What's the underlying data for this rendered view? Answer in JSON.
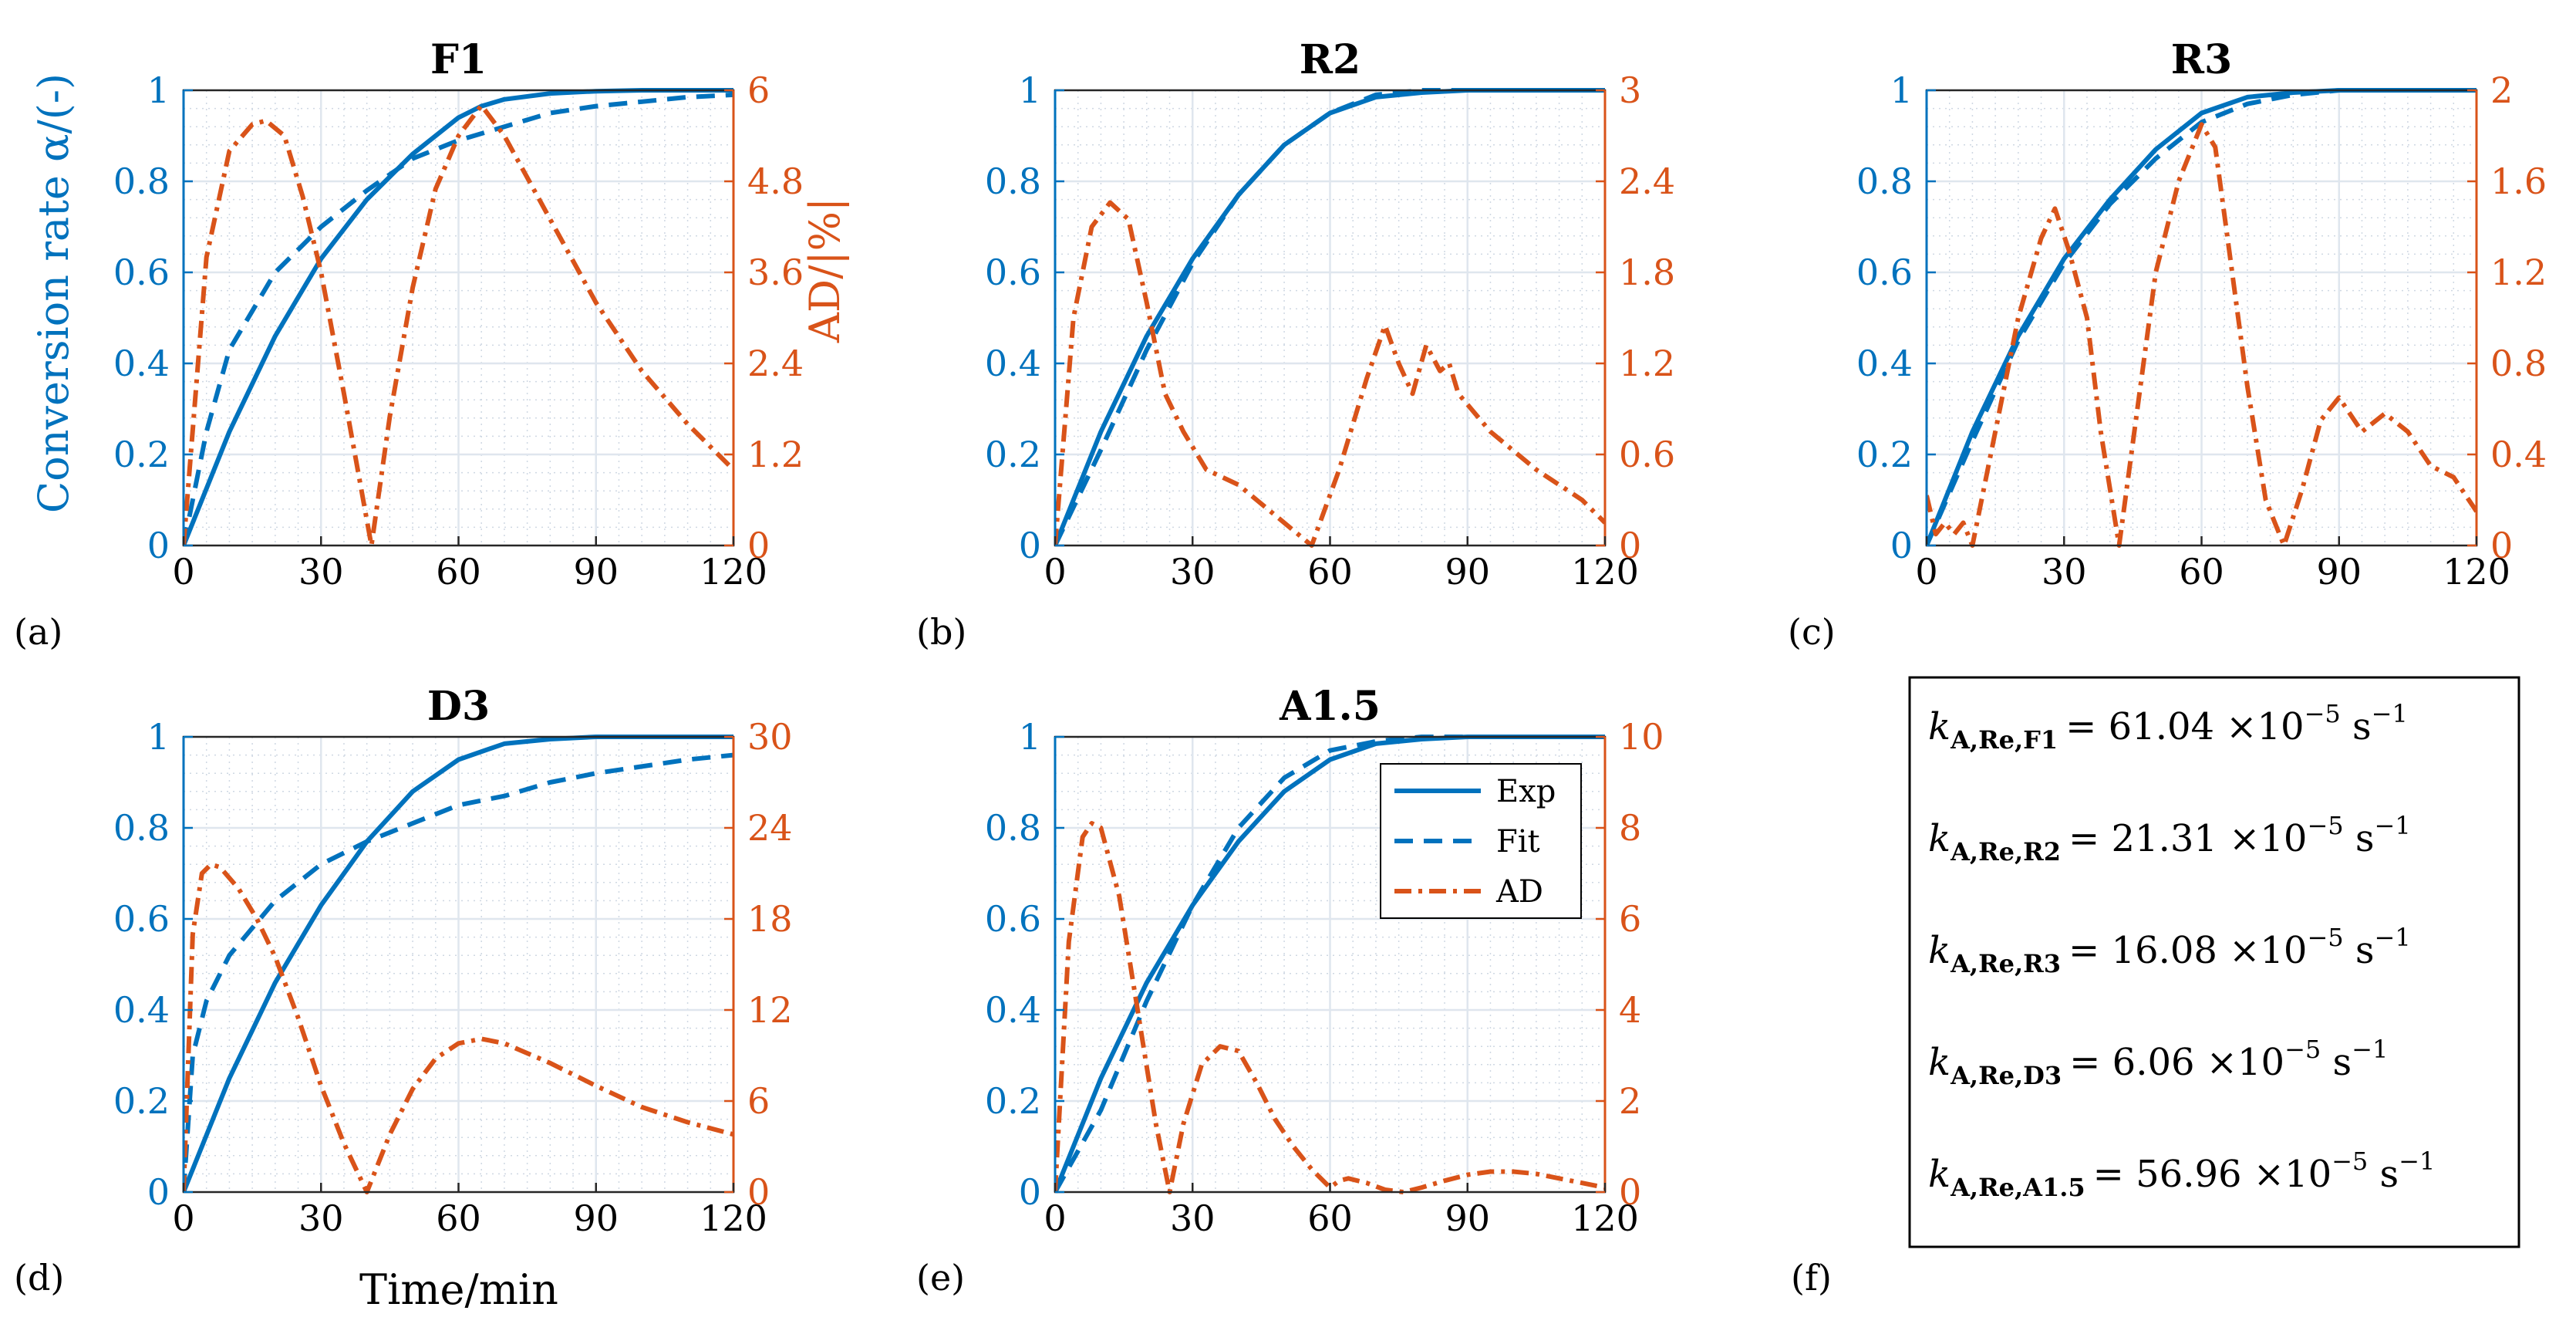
{
  "colors": {
    "left_axis": "#0072BD",
    "right_axis": "#D95319",
    "grid": "#dfe6ee",
    "minor_grid": "#cfd8e3"
  },
  "x_ticks": [
    0,
    30,
    60,
    90,
    120
  ],
  "x_label": "Time/min",
  "left_y_label": "Conversion rate α/(-)",
  "right_y_label": "AD/|%|",
  "legend": {
    "entries": [
      "Exp",
      "Fit",
      "AD"
    ]
  },
  "constants_panel_label": "(f)",
  "constants": [
    {
      "base": "k",
      "sub": "A,Re,F1",
      "value": "= 61.04 ×10",
      "exp": "−5",
      "unit": " s",
      "unit_exp": "−1"
    },
    {
      "base": "k",
      "sub": "A,Re,R2",
      "value": "= 21.31 ×10",
      "exp": "−5",
      "unit": " s",
      "unit_exp": "−1"
    },
    {
      "base": "k",
      "sub": "A,Re,R3",
      "value": "= 16.08 ×10",
      "exp": "−5",
      "unit": " s",
      "unit_exp": "−1"
    },
    {
      "base": "k",
      "sub": "A,Re,D3",
      "value": "= 6.06 ×10",
      "exp": "−5",
      "unit": " s",
      "unit_exp": "−1"
    },
    {
      "base": "k",
      "sub": "A,Re,A1.5",
      "value": "= 56.96 ×10",
      "exp": "−5",
      "unit": " s",
      "unit_exp": "−1"
    }
  ],
  "chart_data": [
    {
      "type": "line",
      "title": "F1",
      "panel_label": "(a)",
      "xlim": [
        0,
        120
      ],
      "ylim_left": [
        0,
        1
      ],
      "ylim_right": [
        0,
        6
      ],
      "yticks_left": [
        "0",
        "0.2",
        "0.4",
        "0.6",
        "0.8",
        "1"
      ],
      "yticks_right": [
        "0",
        "1.2",
        "2.4",
        "3.6",
        "4.8",
        "6"
      ],
      "xlabel": "",
      "ylabel_left": "Conversion rate α/(-)",
      "ylabel_right": "AD/|%|",
      "series": [
        {
          "name": "Exp",
          "axis": "left",
          "x": [
            0,
            10,
            20,
            30,
            40,
            50,
            60,
            65,
            70,
            80,
            90,
            100,
            110,
            120
          ],
          "y": [
            0,
            0.25,
            0.46,
            0.63,
            0.76,
            0.86,
            0.94,
            0.965,
            0.98,
            0.993,
            0.998,
            1,
            1,
            1
          ]
        },
        {
          "name": "Fit",
          "axis": "left",
          "x": [
            0,
            5,
            10,
            20,
            30,
            40,
            50,
            60,
            70,
            80,
            90,
            100,
            110,
            120
          ],
          "y": [
            0,
            0.25,
            0.43,
            0.6,
            0.7,
            0.78,
            0.85,
            0.89,
            0.92,
            0.95,
            0.965,
            0.975,
            0.985,
            0.99
          ]
        },
        {
          "name": "AD",
          "axis": "right",
          "x": [
            0,
            5,
            10,
            15,
            18,
            22,
            26,
            30,
            35,
            41,
            45,
            50,
            55,
            60,
            65,
            70,
            80,
            90,
            100,
            110,
            120
          ],
          "y": [
            0,
            3.8,
            5.2,
            5.55,
            5.6,
            5.4,
            4.6,
            3.6,
            2.0,
            0,
            1.7,
            3.4,
            4.7,
            5.4,
            5.8,
            5.4,
            4.3,
            3.2,
            2.3,
            1.6,
            1.0
          ]
        }
      ]
    },
    {
      "type": "line",
      "title": "R2",
      "panel_label": "(b)",
      "xlim": [
        0,
        120
      ],
      "ylim_left": [
        0,
        1
      ],
      "ylim_right": [
        0,
        3
      ],
      "yticks_left": [
        "0",
        "0.2",
        "0.4",
        "0.6",
        "0.8",
        "1"
      ],
      "yticks_right": [
        "0",
        "0.6",
        "1.2",
        "1.8",
        "2.4",
        "3"
      ],
      "xlabel": "",
      "ylabel_left": "",
      "ylabel_right": "",
      "series": [
        {
          "name": "Exp",
          "axis": "left",
          "x": [
            0,
            10,
            20,
            30,
            40,
            50,
            60,
            70,
            80,
            90,
            100,
            110,
            120
          ],
          "y": [
            0,
            0.25,
            0.46,
            0.63,
            0.77,
            0.88,
            0.95,
            0.985,
            0.995,
            1,
            1,
            1,
            1
          ]
        },
        {
          "name": "Fit",
          "axis": "left",
          "x": [
            0,
            10,
            20,
            30,
            40,
            50,
            60,
            70,
            80,
            90,
            100,
            110,
            120
          ],
          "y": [
            0,
            0.21,
            0.43,
            0.62,
            0.77,
            0.88,
            0.95,
            0.99,
            1,
            1,
            1,
            1,
            1
          ]
        },
        {
          "name": "AD",
          "axis": "right",
          "x": [
            0,
            4,
            8,
            12,
            16,
            20,
            24,
            28,
            33,
            40,
            48,
            56,
            62,
            68,
            72,
            75,
            78,
            81,
            84,
            86,
            88,
            95,
            105,
            115,
            120
          ],
          "y": [
            0,
            1.5,
            2.1,
            2.26,
            2.15,
            1.6,
            1.0,
            0.75,
            0.5,
            0.4,
            0.2,
            0,
            0.5,
            1.1,
            1.45,
            1.2,
            1.0,
            1.32,
            1.15,
            1.2,
            1.0,
            0.75,
            0.5,
            0.3,
            0.15
          ]
        }
      ]
    },
    {
      "type": "line",
      "title": "R3",
      "panel_label": "(c)",
      "xlim": [
        0,
        120
      ],
      "ylim_left": [
        0,
        1
      ],
      "ylim_right": [
        0,
        2
      ],
      "yticks_left": [
        "0",
        "0.2",
        "0.4",
        "0.6",
        "0.8",
        "1"
      ],
      "yticks_right": [
        "0",
        "0.4",
        "0.8",
        "1.2",
        "1.6",
        "2"
      ],
      "xlabel": "",
      "ylabel_left": "",
      "ylabel_right": "",
      "series": [
        {
          "name": "Exp",
          "axis": "left",
          "x": [
            0,
            10,
            20,
            30,
            40,
            50,
            60,
            70,
            80,
            90,
            100,
            110,
            120
          ],
          "y": [
            0,
            0.25,
            0.46,
            0.63,
            0.76,
            0.87,
            0.95,
            0.985,
            0.995,
            1,
            1,
            1,
            1
          ]
        },
        {
          "name": "Fit",
          "axis": "left",
          "x": [
            0,
            10,
            20,
            30,
            40,
            50,
            60,
            70,
            80,
            90,
            100,
            110,
            120
          ],
          "y": [
            0,
            0.23,
            0.45,
            0.62,
            0.75,
            0.85,
            0.93,
            0.97,
            0.99,
            1,
            1,
            1,
            1
          ]
        },
        {
          "name": "AD",
          "axis": "right",
          "x": [
            0,
            2,
            4,
            6,
            8,
            10,
            15,
            20,
            25,
            28,
            31,
            35,
            38,
            42,
            46,
            50,
            55,
            60,
            63,
            66,
            70,
            74,
            78,
            82,
            86,
            90,
            95,
            100,
            105,
            110,
            115,
            120
          ],
          "y": [
            0.22,
            0.05,
            0.1,
            0.05,
            0.1,
            0,
            0.5,
            1.0,
            1.35,
            1.48,
            1.3,
            1.0,
            0.5,
            0,
            0.6,
            1.2,
            1.6,
            1.85,
            1.75,
            1.3,
            0.7,
            0.2,
            0,
            0.25,
            0.55,
            0.65,
            0.5,
            0.58,
            0.5,
            0.35,
            0.3,
            0.15
          ]
        }
      ]
    },
    {
      "type": "line",
      "title": "D3",
      "panel_label": "(d)",
      "xlim": [
        0,
        120
      ],
      "ylim_left": [
        0,
        1
      ],
      "ylim_right": [
        0,
        30
      ],
      "yticks_left": [
        "0",
        "0.2",
        "0.4",
        "0.6",
        "0.8",
        "1"
      ],
      "yticks_right": [
        "0",
        "6",
        "12",
        "18",
        "24",
        "30"
      ],
      "xlabel": "Time/min",
      "ylabel_left": "",
      "ylabel_right": "",
      "series": [
        {
          "name": "Exp",
          "axis": "left",
          "x": [
            0,
            10,
            20,
            30,
            40,
            50,
            60,
            70,
            80,
            90,
            100,
            110,
            120
          ],
          "y": [
            0,
            0.25,
            0.46,
            0.63,
            0.77,
            0.88,
            0.95,
            0.985,
            0.995,
            1,
            1,
            1,
            1
          ]
        },
        {
          "name": "Fit",
          "axis": "left",
          "x": [
            0,
            2,
            5,
            10,
            20,
            30,
            40,
            50,
            60,
            70,
            80,
            90,
            100,
            110,
            120
          ],
          "y": [
            0,
            0.3,
            0.42,
            0.52,
            0.64,
            0.72,
            0.77,
            0.81,
            0.85,
            0.87,
            0.9,
            0.92,
            0.935,
            0.95,
            0.96
          ]
        },
        {
          "name": "AD",
          "axis": "right",
          "x": [
            0,
            2,
            4,
            6,
            8,
            12,
            16,
            20,
            25,
            30,
            35,
            40,
            45,
            50,
            55,
            60,
            65,
            70,
            80,
            90,
            100,
            110,
            120
          ],
          "y": [
            0,
            17,
            21,
            21.6,
            21.4,
            20,
            18,
            15.5,
            11.5,
            7,
            3.2,
            0,
            3.8,
            6.8,
            8.8,
            9.8,
            10.1,
            9.8,
            8.5,
            7,
            5.6,
            4.6,
            3.8
          ]
        }
      ]
    },
    {
      "type": "line",
      "title": "A1.5",
      "panel_label": "(e)",
      "xlim": [
        0,
        120
      ],
      "ylim_left": [
        0,
        1
      ],
      "ylim_right": [
        0,
        10
      ],
      "yticks_left": [
        "0",
        "0.2",
        "0.4",
        "0.6",
        "0.8",
        "1"
      ],
      "yticks_right": [
        "0",
        "2",
        "4",
        "6",
        "8",
        "10"
      ],
      "xlabel": "",
      "ylabel_left": "",
      "ylabel_right": "",
      "series": [
        {
          "name": "Exp",
          "axis": "left",
          "x": [
            0,
            10,
            20,
            30,
            40,
            50,
            60,
            70,
            80,
            90,
            100,
            110,
            120
          ],
          "y": [
            0,
            0.25,
            0.46,
            0.63,
            0.77,
            0.88,
            0.95,
            0.985,
            0.995,
            1,
            1,
            1,
            1
          ]
        },
        {
          "name": "Fit",
          "axis": "left",
          "x": [
            0,
            10,
            20,
            30,
            40,
            50,
            60,
            70,
            80,
            90,
            100,
            110,
            120
          ],
          "y": [
            0,
            0.18,
            0.42,
            0.63,
            0.8,
            0.91,
            0.97,
            0.99,
            1,
            1,
            1,
            1,
            1
          ]
        },
        {
          "name": "AD",
          "axis": "right",
          "x": [
            0,
            3,
            6,
            8,
            10,
            14,
            18,
            22,
            25,
            28,
            32,
            36,
            40,
            44,
            48,
            52,
            56,
            60,
            62,
            64,
            68,
            72,
            76,
            80,
            85,
            90,
            95,
            100,
            105,
            110,
            115,
            120
          ],
          "y": [
            0,
            5.5,
            7.8,
            8.1,
            8.0,
            6.5,
            4.0,
            1.5,
            0,
            1.5,
            2.8,
            3.2,
            3.1,
            2.4,
            1.6,
            1.0,
            0.5,
            0.1,
            0.25,
            0.3,
            0.2,
            0.05,
            0,
            0.1,
            0.25,
            0.38,
            0.45,
            0.45,
            0.4,
            0.3,
            0.2,
            0.1
          ]
        }
      ]
    }
  ]
}
